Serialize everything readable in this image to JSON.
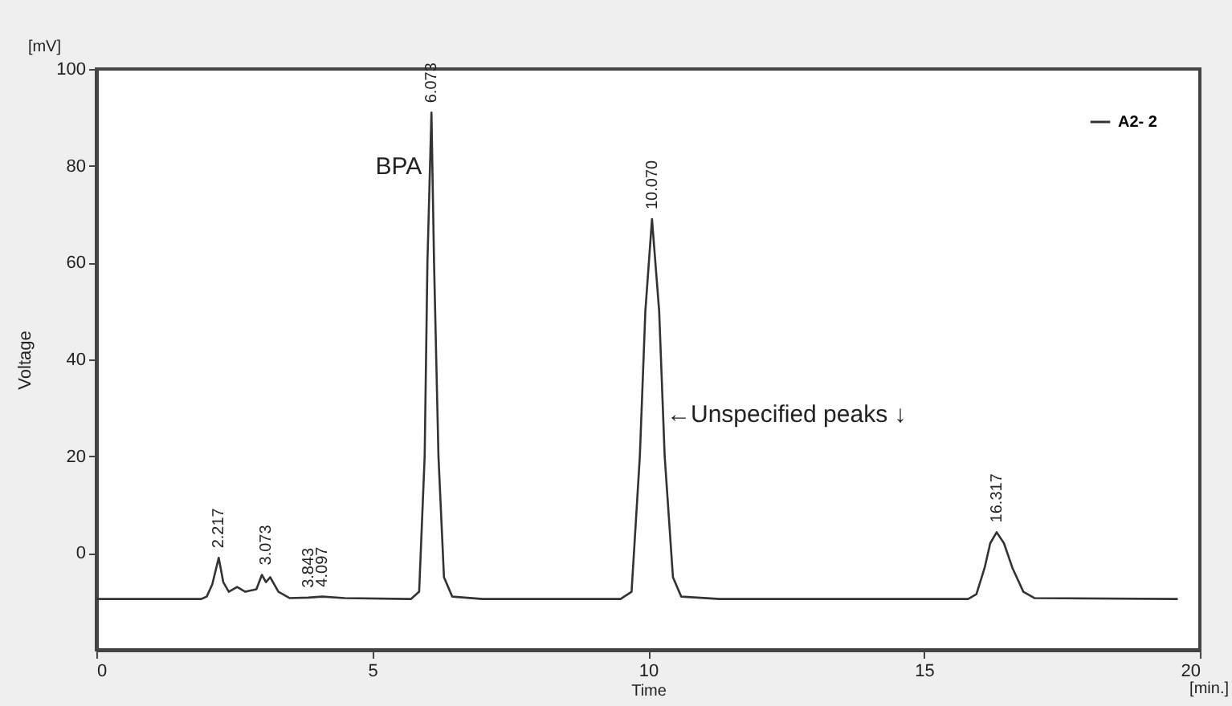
{
  "chart_data": {
    "type": "line",
    "xlabel": "Time",
    "ylabel": "Voltage",
    "x": [
      0,
      1.9,
      2.0,
      2.1,
      2.217,
      2.3,
      2.4,
      2.55,
      2.7,
      2.9,
      3.0,
      3.073,
      3.15,
      3.3,
      3.5,
      3.843,
      4.097,
      4.5,
      5.7,
      5.85,
      5.95,
      6.0,
      6.073,
      6.12,
      6.2,
      6.3,
      6.45,
      7,
      9.5,
      9.7,
      9.85,
      9.95,
      10.07,
      10.2,
      10.3,
      10.45,
      10.6,
      11.3,
      15.8,
      15.95,
      16.1,
      16.2,
      16.317,
      16.45,
      16.6,
      16.8,
      17,
      19.6
    ],
    "series": [
      {
        "name": "A2- 2",
        "color": "#333333",
        "values": [
          -9.5,
          -9.5,
          -9,
          -6.5,
          -1,
          -6,
          -8,
          -7,
          -8,
          -7.5,
          -4.5,
          -6,
          -5,
          -8,
          -9.3,
          -9.2,
          -9,
          -9.3,
          -9.5,
          -8,
          20,
          60,
          91,
          60,
          20,
          -5,
          -9,
          -9.5,
          -9.5,
          -8,
          20,
          50,
          69,
          50,
          20,
          -5,
          -9,
          -9.5,
          -9.5,
          -8.5,
          -3,
          2,
          4.3,
          2,
          -3,
          -8,
          -9.3,
          -9.5
        ]
      }
    ],
    "xlim": [
      0,
      20
    ],
    "xticks": [
      0,
      5,
      10,
      15,
      20
    ],
    "ylim": [
      -20,
      100
    ],
    "yticks": [
      0,
      20,
      40,
      60,
      80,
      100
    ],
    "grid": false,
    "legend": "top right",
    "marker": "none",
    "line_style": "solid",
    "annotations": [
      "[mV]",
      "[min.]",
      "←Unspecified peaks ↓",
      {
        "text": "BPA",
        "x": 6.073,
        "y": 80
      },
      {
        "text": "2.217",
        "x": 2.217,
        "y": -1
      },
      {
        "text": "3.073",
        "x": 3.073,
        "y": -4.5
      },
      {
        "text": "3.843",
        "x": 3.843,
        "y": -9.2
      },
      {
        "text": "4.097",
        "x": 4.097,
        "y": -9
      },
      {
        "text": "6.073",
        "x": 6.073,
        "y": 91
      },
      {
        "text": "10.070",
        "x": 10.07,
        "y": 69
      },
      {
        "text": "16.317",
        "x": 16.317,
        "y": 4.3
      }
    ]
  }
}
